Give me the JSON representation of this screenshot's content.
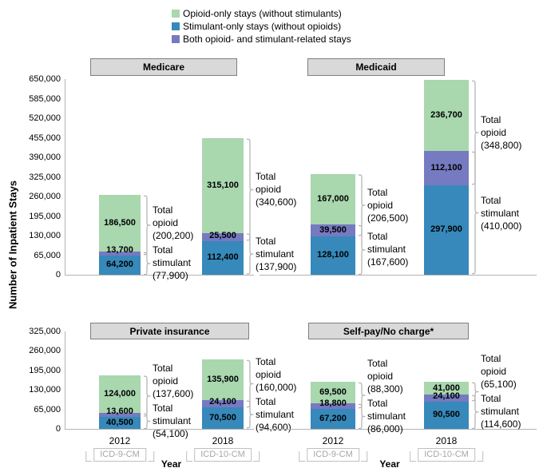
{
  "chart_data": {
    "type": "bar",
    "subtype": "stacked",
    "ylabel": "Number of Inpatient Stays",
    "xlabel": "Year",
    "grid": false,
    "legend_position": "top-center",
    "legend": [
      {
        "name": "opioid_only",
        "label": "Opioid-only stays (without stimulants)",
        "color": "#a9d7ae"
      },
      {
        "name": "stimulant_only",
        "label": "Stimulant-only stays (without opioids)",
        "color": "#3689ba"
      },
      {
        "name": "both",
        "label": "Both opioid- and stimulant-related stays",
        "color": "#767ac1"
      }
    ],
    "stack_order_bottom_to_top": [
      "stimulant_only",
      "both",
      "opioid_only"
    ],
    "panels": [
      {
        "title": "Medicare",
        "ylim": [
          0,
          650000
        ],
        "ytick_step": 65000,
        "yticks": [
          "650,000",
          "585,000",
          "520,000",
          "455,000",
          "390,000",
          "325,000",
          "260,000",
          "195,000",
          "130,000",
          "65,000",
          "0"
        ],
        "bars": [
          {
            "x": "2012",
            "x_sub": "ICD-9-CM",
            "segments": {
              "stimulant_only": 64200,
              "both": 13700,
              "opioid_only": 186500
            },
            "segment_labels": {
              "stimulant_only": "64,200",
              "both": "13,700",
              "opioid_only": "186,500"
            },
            "total_opioid": 200200,
            "total_opioid_label": "Total opioid (200,200)",
            "total_stimulant": 77900,
            "total_stimulant_label": "Total stimulant (77,900)"
          },
          {
            "x": "2018",
            "x_sub": "ICD-10-CM",
            "segments": {
              "stimulant_only": 112400,
              "both": 25500,
              "opioid_only": 315100
            },
            "segment_labels": {
              "stimulant_only": "112,400",
              "both": "25,500",
              "opioid_only": "315,100"
            },
            "total_opioid": 340600,
            "total_opioid_label": "Total opioid (340,600)",
            "total_stimulant": 137900,
            "total_stimulant_label": "Total stimulant (137,900)"
          }
        ]
      },
      {
        "title": "Medicaid",
        "ylim": [
          0,
          650000
        ],
        "ytick_step": 65000,
        "yticks": [
          "650,000",
          "585,000",
          "520,000",
          "455,000",
          "390,000",
          "325,000",
          "260,000",
          "195,000",
          "130,000",
          "65,000",
          "0"
        ],
        "bars": [
          {
            "x": "2012",
            "x_sub": "ICD-9-CM",
            "segments": {
              "stimulant_only": 128100,
              "both": 39500,
              "opioid_only": 167000
            },
            "segment_labels": {
              "stimulant_only": "128,100",
              "both": "39,500",
              "opioid_only": "167,000"
            },
            "total_opioid": 206500,
            "total_opioid_label": "Total opioid (206,500)",
            "total_stimulant": 167600,
            "total_stimulant_label": "Total stimulant (167,600)"
          },
          {
            "x": "2018",
            "x_sub": "ICD-10-CM",
            "segments": {
              "stimulant_only": 297900,
              "both": 112100,
              "opioid_only": 236700
            },
            "segment_labels": {
              "stimulant_only": "297,900",
              "both": "112,100",
              "opioid_only": "236,700"
            },
            "total_opioid": 348800,
            "total_opioid_label": "Total opioid (348,800)",
            "total_stimulant": 410000,
            "total_stimulant_label": "Total stimulant (410,000)"
          }
        ]
      },
      {
        "title": "Private insurance",
        "ylim": [
          0,
          325000
        ],
        "ytick_step": 65000,
        "yticks": [
          "325,000",
          "260,000",
          "195,000",
          "130,000",
          "65,000",
          "0"
        ],
        "bars": [
          {
            "x": "2012",
            "x_sub": "ICD-9-CM",
            "segments": {
              "stimulant_only": 40500,
              "both": 13600,
              "opioid_only": 124000
            },
            "segment_labels": {
              "stimulant_only": "40,500",
              "both": "13,600",
              "opioid_only": "124,000"
            },
            "total_opioid": 137600,
            "total_opioid_label": "Total opioid (137,600)",
            "total_stimulant": 54100,
            "total_stimulant_label": "Total stimulant (54,100)"
          },
          {
            "x": "2018",
            "x_sub": "ICD-10-CM",
            "segments": {
              "stimulant_only": 70500,
              "both": 24100,
              "opioid_only": 135900
            },
            "segment_labels": {
              "stimulant_only": "70,500",
              "both": "24,100",
              "opioid_only": "135,900"
            },
            "total_opioid": 160000,
            "total_opioid_label": "Total opioid (160,000)",
            "total_stimulant": 94600,
            "total_stimulant_label": "Total stimulant (94,600)"
          }
        ]
      },
      {
        "title": "Self-pay/No charge*",
        "ylim": [
          0,
          325000
        ],
        "ytick_step": 65000,
        "yticks": [
          "325,000",
          "260,000",
          "195,000",
          "130,000",
          "65,000",
          "0"
        ],
        "bars": [
          {
            "x": "2012",
            "x_sub": "ICD-9-CM",
            "segments": {
              "stimulant_only": 67200,
              "both": 18800,
              "opioid_only": 69500
            },
            "segment_labels": {
              "stimulant_only": "67,200",
              "both": "18,800",
              "opioid_only": "69,500"
            },
            "total_opioid": 88300,
            "total_opioid_label": "Total opioid (88,300)",
            "total_stimulant": 86000,
            "total_stimulant_label": "Total stimulant (86,000)"
          },
          {
            "x": "2018",
            "x_sub": "ICD-10-CM",
            "segments": {
              "stimulant_only": 90500,
              "both": 24100,
              "opioid_only": 41000
            },
            "segment_labels": {
              "stimulant_only": "90,500",
              "both": "24,100",
              "opioid_only": "41,000"
            },
            "total_opioid": 65100,
            "total_opioid_label": "Total opioid (65,100)",
            "total_stimulant": 114600,
            "total_stimulant_label": "Total stimulant (114,600)"
          }
        ]
      }
    ]
  }
}
